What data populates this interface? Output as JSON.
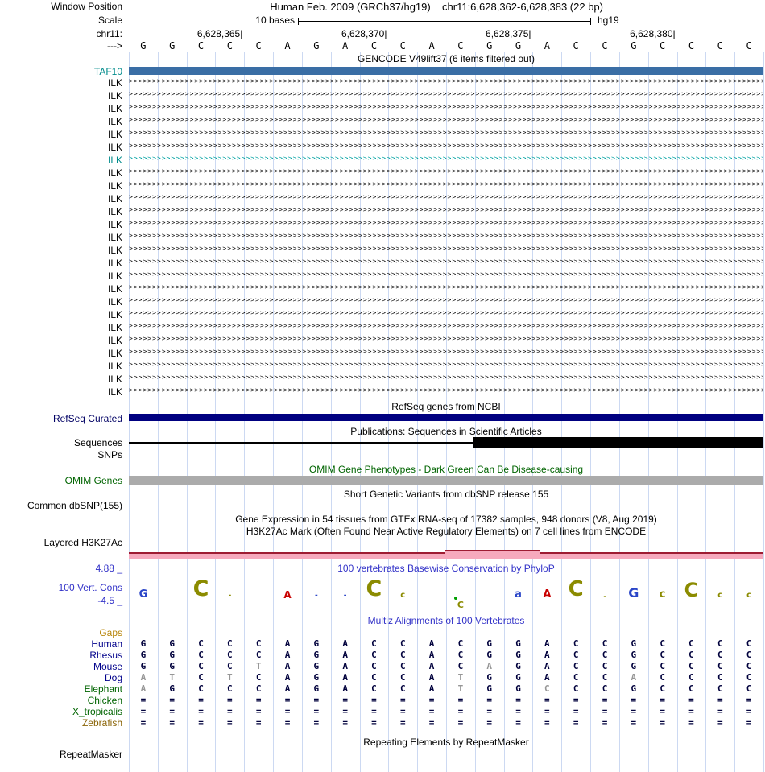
{
  "header": {
    "assembly_title": "Human Feb. 2009 (GRCh37/hg19)",
    "position_text": "chr11:6,628,362-6,628,383 (22 bp)",
    "scale_text": "10 bases",
    "genome": "hg19",
    "ruler_ticks": [
      {
        "label": "6,628,365",
        "col": 3
      },
      {
        "label": "6,628,370",
        "col": 8
      },
      {
        "label": "6,628,375",
        "col": 13
      },
      {
        "label": "6,628,380",
        "col": 18
      }
    ],
    "sequence": "GGCCCAGACCACGGACCGCCCC"
  },
  "labels": {
    "window_position": "Window Position",
    "scale": "Scale",
    "chrom": "chr11:",
    "strand": "--->",
    "taf10": "TAF10",
    "ilk": "ILK",
    "refseq": "RefSeq Curated",
    "sequences": "Sequences",
    "snps": "SNPs",
    "omim": "OMIM Genes",
    "dbsnp": "Common dbSNP(155)",
    "h3k27ac": "Layered H3K27Ac",
    "cons_max": "4.88 _",
    "cons": "100 Vert. Cons",
    "cons_min": "-4.5 _",
    "rmsk": "RepeatMasker"
  },
  "tracks": {
    "gencode_title": "GENCODE V49lift37 (6 items filtered out)",
    "refseq_title": "RefSeq genes from NCBI",
    "publications_title": "Publications: Sequences in Scientific Articles",
    "omim_title": "OMIM Gene Phenotypes - Dark Green Can Be Disease-causing",
    "dbsnp_title": "Short Genetic Variants from dbSNP release 155",
    "gtex_title": "Gene Expression in 54 tissues from GTEx RNA-seq of 17382 samples, 948 donors (V8, Aug 2019)",
    "h3k27ac_title": "H3K27Ac Mark (Often Found Near Active Regulatory Elements) on 7 cell lines from ENCODE",
    "cons_title": "100 vertebrates Basewise Conservation by PhyloP",
    "multiz_title": "Multiz Alignments of 100 Vertebrates",
    "rmsk_title": "Repeating Elements by RepeatMasker",
    "ilk_count": 25,
    "ilk_highlight_index": 6
  },
  "colors": {
    "gridline": "#ccd9f2",
    "transcript": "#141414",
    "teal_transcript": "#00a2a2",
    "teal_label": "#008b8b",
    "taf10_bar": "#3a6ea5",
    "refseq_bar": "#000080",
    "sequences_bar": "#000000",
    "omim_bar": "#ababab",
    "h3k27ac_pink": "#f6a9bd",
    "h3k27ac_line": "#9e1b32",
    "header_blue": "#3232c8",
    "omim_green": "#006400",
    "align_letter": "#00003c",
    "muted_letter": "#969696"
  },
  "alignment": {
    "species": [
      {
        "name": "Gaps",
        "label_color": "#b8860b",
        "seq": "",
        "muted": []
      },
      {
        "name": "Human",
        "label_color": "#00008b",
        "seq": "GGCCCAGACCACGGACCGCCCC",
        "muted": []
      },
      {
        "name": "Rhesus",
        "label_color": "#00008b",
        "seq": "GGCCCAGACCACGGACCGCCCC",
        "muted": []
      },
      {
        "name": "Mouse",
        "label_color": "#00008b",
        "seq": "GGCCTAGACCACAGACCGCCCC",
        "muted": [
          4,
          12
        ]
      },
      {
        "name": "Dog",
        "label_color": "#00008b",
        "seq": "ATCTCAGACCATGGACCACCCC",
        "muted": [
          0,
          1,
          3,
          11,
          17
        ]
      },
      {
        "name": "Elephant",
        "label_color": "#006400",
        "seq": "AGCCCAGACCATGGCCCGCCCC",
        "muted": [
          0,
          11,
          14
        ]
      },
      {
        "name": "Chicken",
        "label_color": "#006400",
        "seq": "======================",
        "muted": []
      },
      {
        "name": "X_tropicalis",
        "label_color": "#006400",
        "seq": "======================",
        "muted": []
      },
      {
        "name": "Zebrafish",
        "label_color": "#8b6508",
        "seq": "======================",
        "muted": []
      }
    ]
  },
  "conservation_logo": [
    {
      "ch": "G",
      "color": "#2b46c8",
      "size": 13
    },
    null,
    {
      "ch": "C",
      "color": "#8b8b00",
      "size": 27
    },
    {
      "ch": "-",
      "color": "#8b8b00",
      "size": 9
    },
    null,
    {
      "ch": "A",
      "color": "#c80000",
      "size": 12
    },
    {
      "ch": "-",
      "color": "#2b46c8",
      "size": 9
    },
    {
      "ch": "-",
      "color": "#2b46c8",
      "size": 9
    },
    {
      "ch": "C",
      "color": "#8b8b00",
      "size": 27
    },
    {
      "ch": "c",
      "color": "#8b8b00",
      "size": 10
    },
    null,
    {
      "ch": "C",
      "color": "#8b8b00",
      "size": 11,
      "below": true,
      "dot": true
    },
    null,
    {
      "ch": "a",
      "color": "#2b46c8",
      "size": 13
    },
    {
      "ch": "A",
      "color": "#c80000",
      "size": 13
    },
    {
      "ch": "C",
      "color": "#8b8b00",
      "size": 26
    },
    {
      "ch": "-",
      "color": "#8b8b00",
      "size": 8
    },
    {
      "ch": "G",
      "color": "#2b46c8",
      "size": 16
    },
    {
      "ch": "c",
      "color": "#8b8b00",
      "size": 13
    },
    {
      "ch": "C",
      "color": "#8b8b00",
      "size": 24
    },
    {
      "ch": "c",
      "color": "#8b8b00",
      "size": 10
    },
    {
      "ch": "c",
      "color": "#8b8b00",
      "size": 10
    }
  ]
}
